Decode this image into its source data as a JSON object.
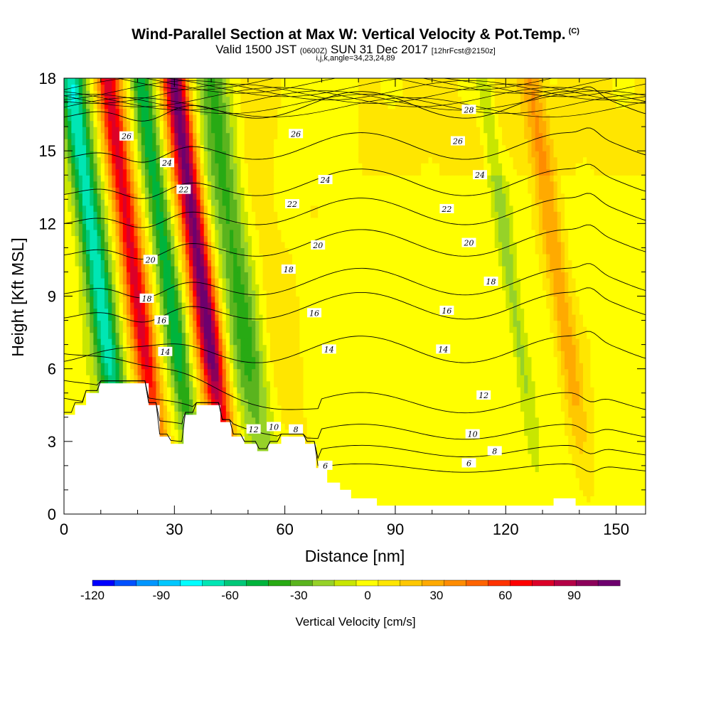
{
  "header": {
    "title": "Wind-Parallel Section at Max W: Vertical Velocity & Pot.Temp.",
    "title_tag": "(C)",
    "valid_prefix": "Valid 1500 JST",
    "valid_zulu": "(0600Z)",
    "valid_date": "SUN 31 Dec 2017",
    "forecast": "[12hrFcst@2150z]",
    "indices": "i,j,k,angle=34,23,24,89"
  },
  "colors": {
    "terrain": "#ffffff",
    "contour": "#000000",
    "palette": [
      "#0000ff",
      "#0050ff",
      "#0096ff",
      "#00c8ff",
      "#00ffff",
      "#00e6b4",
      "#00c878",
      "#00b43c",
      "#28aa14",
      "#5ab41e",
      "#96d228",
      "#c8e600",
      "#ffff00",
      "#ffe600",
      "#ffc800",
      "#ffaa00",
      "#ff8c00",
      "#ff6400",
      "#ff3200",
      "#ff0000",
      "#dc0028",
      "#b40046",
      "#8c005a",
      "#6e006e"
    ]
  },
  "chart_data": {
    "type": "heatmap",
    "xlabel": "Distance [nm]",
    "ylabel": "Height [Kft MSL]",
    "xlim": [
      0,
      158
    ],
    "ylim": [
      0,
      18
    ],
    "xticks": [
      0,
      30,
      60,
      90,
      120,
      150
    ],
    "yticks": [
      0,
      3,
      6,
      9,
      12,
      15,
      18
    ],
    "colorbar": {
      "label": "Vertical Velocity [cm/s]",
      "min": -120,
      "max": 110,
      "step": 10,
      "ticks": [
        -120,
        -90,
        -60,
        -30,
        0,
        30,
        60,
        90
      ]
    },
    "w_bands": [
      {
        "x": 18,
        "w": -75,
        "width": 3.5
      },
      {
        "x": 28,
        "w": 80,
        "width": 3.2
      },
      {
        "x": 37,
        "w": -55,
        "width": 2.8
      },
      {
        "x": 46,
        "w": 110,
        "width": 3.3
      },
      {
        "x": 56,
        "w": -40,
        "width": 4.5
      },
      {
        "x": 66,
        "w": 10,
        "width": 6
      },
      {
        "x": 143,
        "w": 30,
        "width": 3
      },
      {
        "x": 130,
        "w": -20,
        "width": 2
      }
    ],
    "terrain_profile": [
      [
        0,
        4.1
      ],
      [
        3,
        4.1
      ],
      [
        3,
        4.5
      ],
      [
        6,
        4.5
      ],
      [
        6,
        5.0
      ],
      [
        9.5,
        5.0
      ],
      [
        9.5,
        5.4
      ],
      [
        23,
        5.4
      ],
      [
        23,
        4.5
      ],
      [
        26,
        4.5
      ],
      [
        26,
        3.2
      ],
      [
        29,
        3.2
      ],
      [
        29,
        2.9
      ],
      [
        32.5,
        2.9
      ],
      [
        32.5,
        4.1
      ],
      [
        36,
        4.1
      ],
      [
        36,
        4.5
      ],
      [
        42.5,
        4.5
      ],
      [
        42.5,
        3.8
      ],
      [
        45.5,
        3.8
      ],
      [
        45.5,
        3.2
      ],
      [
        49,
        3.2
      ],
      [
        49,
        2.9
      ],
      [
        52.5,
        2.9
      ],
      [
        52.5,
        2.6
      ],
      [
        55.5,
        2.6
      ],
      [
        55.5,
        2.9
      ],
      [
        59,
        2.9
      ],
      [
        59,
        3.2
      ],
      [
        65.5,
        3.2
      ],
      [
        65.5,
        2.9
      ],
      [
        68.5,
        2.9
      ],
      [
        68.5,
        1.9
      ],
      [
        71.5,
        1.9
      ],
      [
        71.5,
        1.3
      ],
      [
        75,
        1.3
      ],
      [
        75,
        1.0
      ],
      [
        78,
        1.0
      ],
      [
        78,
        0.65
      ],
      [
        85,
        0.65
      ],
      [
        85,
        0.35
      ],
      [
        133,
        0.35
      ],
      [
        133,
        0.65
      ],
      [
        139,
        0.65
      ],
      [
        139,
        0.35
      ],
      [
        158,
        0.35
      ]
    ],
    "theta_contours": [
      {
        "value": 6,
        "far_height": 1.9,
        "label": "6"
      },
      {
        "value": 8,
        "far_height": 2.6,
        "label": "8"
      },
      {
        "value": 10,
        "far_height": 3.4,
        "label": "10"
      },
      {
        "value": 12,
        "far_height": 4.6,
        "label": "12"
      },
      {
        "value": 14,
        "far_height": 6.8,
        "label": "14"
      },
      {
        "value": 16,
        "far_height": 8.6,
        "label": "16"
      },
      {
        "value": 18,
        "far_height": 9.6,
        "label": "18"
      },
      {
        "value": 20,
        "far_height": 11.2,
        "label": "20"
      },
      {
        "value": 22,
        "far_height": 12.5,
        "label": "22"
      },
      {
        "value": 24,
        "far_height": 13.7,
        "label": "24"
      },
      {
        "value": 26,
        "far_height": 15.2,
        "label": "26"
      },
      {
        "value": 28,
        "far_height": 16.9,
        "label": "28"
      }
    ],
    "contour_label_positions": [
      {
        "label": "28",
        "x": 110,
        "y": 16.7
      },
      {
        "label": "26",
        "x": 107,
        "y": 15.4
      },
      {
        "label": "26",
        "x": 63,
        "y": 15.7
      },
      {
        "label": "26",
        "x": 17,
        "y": 15.6
      },
      {
        "label": "24",
        "x": 113,
        "y": 14.0
      },
      {
        "label": "24",
        "x": 71,
        "y": 13.8
      },
      {
        "label": "24",
        "x": 28,
        "y": 14.5
      },
      {
        "label": "22",
        "x": 104,
        "y": 12.6
      },
      {
        "label": "22",
        "x": 62,
        "y": 12.8
      },
      {
        "label": "22",
        "x": 32.5,
        "y": 13.4
      },
      {
        "label": "20",
        "x": 110,
        "y": 11.2
      },
      {
        "label": "20",
        "x": 69,
        "y": 11.1
      },
      {
        "label": "20",
        "x": 23.5,
        "y": 10.5
      },
      {
        "label": "18",
        "x": 116,
        "y": 9.6
      },
      {
        "label": "18",
        "x": 61,
        "y": 10.1
      },
      {
        "label": "18",
        "x": 22.5,
        "y": 8.9
      },
      {
        "label": "16",
        "x": 104,
        "y": 8.4
      },
      {
        "label": "16",
        "x": 68,
        "y": 8.3
      },
      {
        "label": "16",
        "x": 26.5,
        "y": 8.0
      },
      {
        "label": "14",
        "x": 103,
        "y": 6.8
      },
      {
        "label": "14",
        "x": 72,
        "y": 6.8
      },
      {
        "label": "14",
        "x": 27.5,
        "y": 6.7
      },
      {
        "label": "12",
        "x": 114,
        "y": 4.9
      },
      {
        "label": "12",
        "x": 51.5,
        "y": 3.5
      },
      {
        "label": "10",
        "x": 111,
        "y": 3.3
      },
      {
        "label": "10",
        "x": 57,
        "y": 3.6
      },
      {
        "label": "8",
        "x": 117,
        "y": 2.6
      },
      {
        "label": "8",
        "x": 63,
        "y": 3.5
      },
      {
        "label": "6",
        "x": 110,
        "y": 2.1
      },
      {
        "label": "6",
        "x": 71,
        "y": 2.0
      }
    ]
  }
}
